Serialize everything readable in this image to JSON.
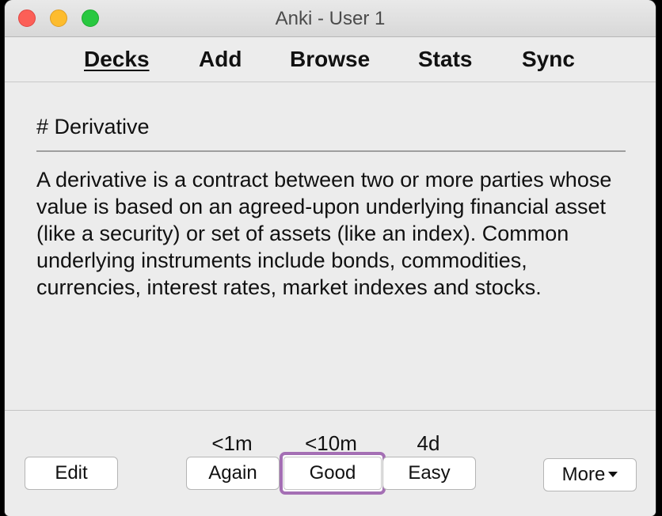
{
  "window": {
    "title": "Anki - User 1"
  },
  "toolbar": {
    "links": [
      {
        "label": "Decks",
        "active": true
      },
      {
        "label": "Add"
      },
      {
        "label": "Browse"
      },
      {
        "label": "Stats"
      },
      {
        "label": "Sync"
      }
    ]
  },
  "card": {
    "front": "# Derivative",
    "back": "A derivative is a contract between two or more parties whose value is based on an agreed-upon underlying financial asset (like a security) or set of assets (like an index). Common underlying instruments include bonds, commodities, currencies, interest rates, market indexes and stocks."
  },
  "answer_bar": {
    "edit_label": "Edit",
    "again": {
      "label": "Again",
      "interval": "<1m"
    },
    "good": {
      "label": "Good",
      "interval": "<10m"
    },
    "easy": {
      "label": "Easy",
      "interval": "4d"
    },
    "more_label": "More",
    "more_icon": "caret-down-icon"
  },
  "colors": {
    "focus_ring": "#a46fb4",
    "close": "#fc5f57",
    "minimize": "#fdbc2e",
    "zoom": "#28c840"
  }
}
